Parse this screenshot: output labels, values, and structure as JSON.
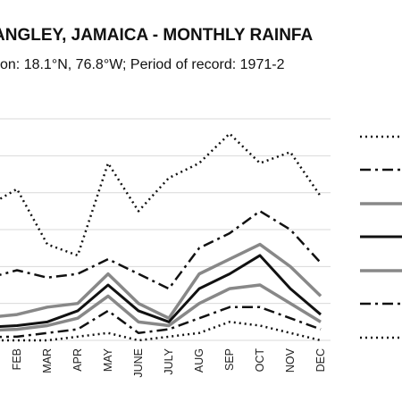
{
  "chart_data": {
    "type": "line",
    "title": "ANGLEY, JAMAICA - MONTHLY RAINFA",
    "subtitle": "tion: 18.1°N, 76.8°W; Period of record: 1971-2",
    "categories": [
      "FEB",
      "MAR",
      "APR",
      "MAY",
      "JUNE",
      "JULY",
      "AUG",
      "SEP",
      "OCT",
      "NOV",
      "DEC"
    ],
    "ylim": [
      0,
      6.8
    ],
    "grid": true,
    "series": [
      {
        "values": [
          4.1,
          2.6,
          2.3,
          4.8,
          3.5,
          4.4,
          4.8,
          5.6,
          4.8,
          5.1,
          3.9
        ],
        "color": "#111111",
        "style": "dotted",
        "width": 2.5
      },
      {
        "values": [
          1.9,
          1.7,
          1.8,
          2.2,
          1.8,
          1.4,
          2.5,
          2.9,
          3.5,
          3.0,
          2.1
        ],
        "color": "#111111",
        "style": "dashdot",
        "width": 2.5
      },
      {
        "values": [
          0.7,
          0.9,
          1.0,
          1.8,
          1.0,
          0.6,
          1.8,
          2.2,
          2.6,
          2.0,
          1.2
        ],
        "color": "#888888",
        "style": "solid",
        "width": 3.5
      },
      {
        "values": [
          0.4,
          0.5,
          0.8,
          1.5,
          0.8,
          0.5,
          1.4,
          1.8,
          2.3,
          1.4,
          0.7
        ],
        "color": "#111111",
        "style": "solid",
        "width": 3
      },
      {
        "values": [
          0.3,
          0.4,
          0.6,
          1.2,
          0.5,
          0.4,
          1.0,
          1.4,
          1.5,
          1.0,
          0.5
        ],
        "color": "#888888",
        "style": "solid",
        "width": 3.5
      },
      {
        "values": [
          0.1,
          0.2,
          0.3,
          0.8,
          0.2,
          0.3,
          0.6,
          0.9,
          0.9,
          0.6,
          0.3
        ],
        "color": "#111111",
        "style": "dashdot",
        "width": 2.5
      },
      {
        "values": [
          0.0,
          0.0,
          0.1,
          0.2,
          0.0,
          0.1,
          0.2,
          0.5,
          0.4,
          0.2,
          0.0
        ],
        "color": "#111111",
        "style": "dotted",
        "width": 2.5
      }
    ]
  }
}
